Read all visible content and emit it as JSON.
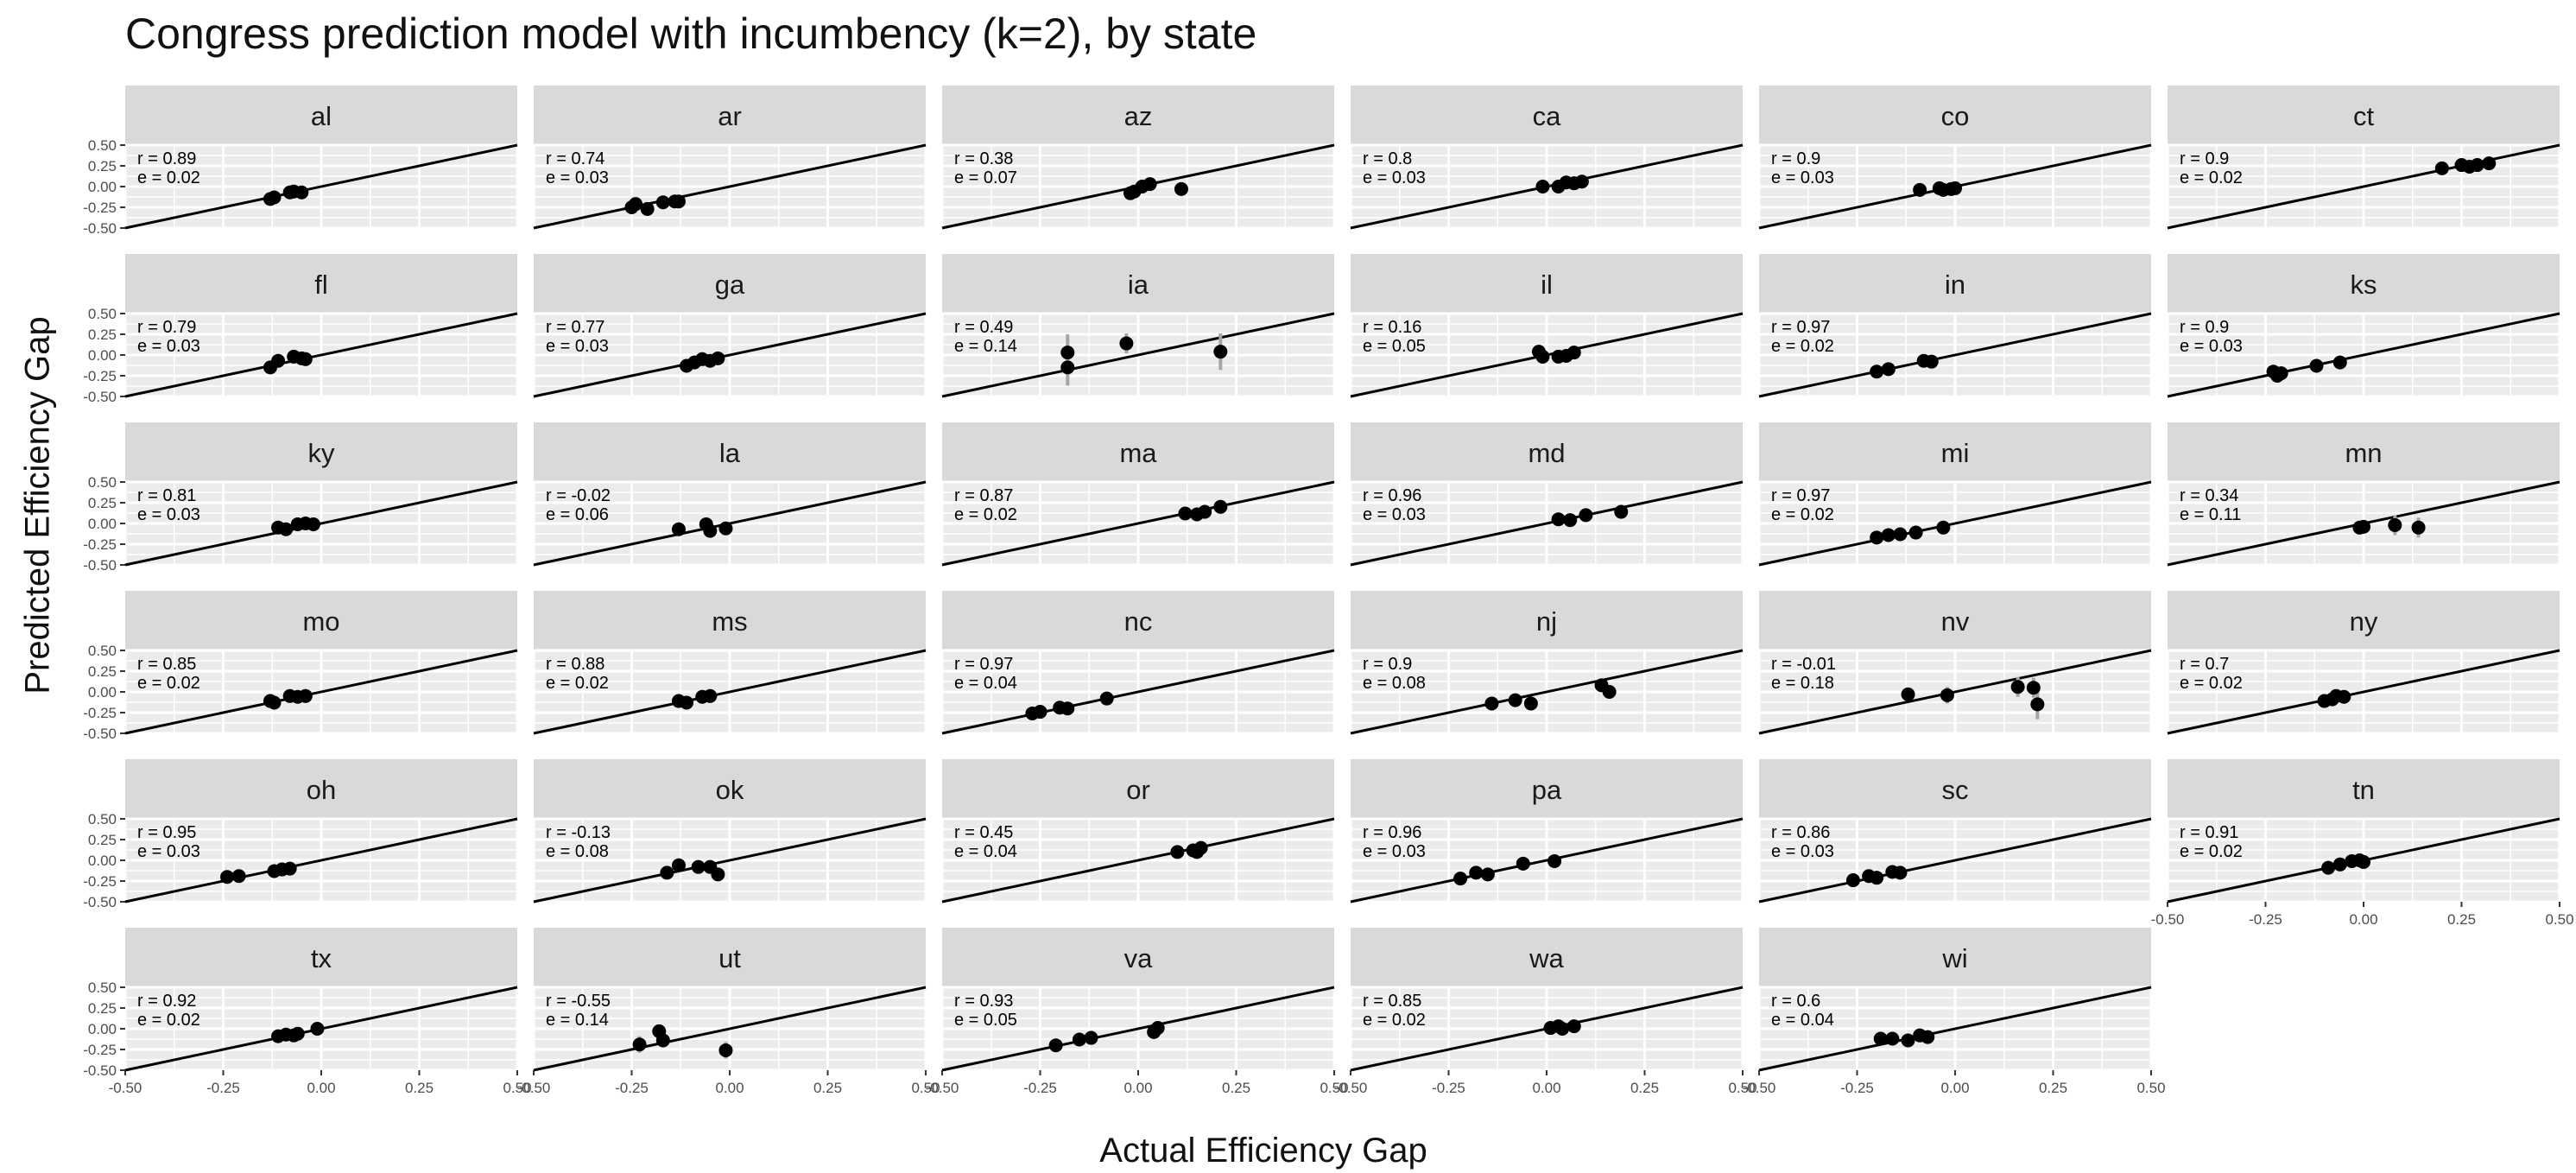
{
  "title": "Congress prediction model with incumbency (k=2), by state",
  "chart_data": {
    "type": "scatter",
    "title": "Congress prediction model with incumbency (k=2), by state",
    "xlabel": "Actual Efficiency Gap",
    "ylabel": "Predicted Efficiency Gap",
    "xlim": [
      -0.5,
      0.5
    ],
    "ylim": [
      -0.5,
      0.5
    ],
    "x_ticks": [
      "-0.50",
      "-0.25",
      "0.00",
      "0.25",
      "0.50"
    ],
    "y_ticks": [
      "0.50",
      "0.25",
      "0.00",
      "-0.25",
      "-0.50"
    ],
    "reference_line": "y = x",
    "grid": true,
    "panel_background": "#ebebeb",
    "strip_background": "#d9d9d9",
    "point_color": "#000000",
    "errorbar_color": "#a6a6a6",
    "line_color": "#000000",
    "facets": [
      {
        "state": "al",
        "r": "r = 0.89",
        "e": "e = 0.02",
        "points": [
          {
            "x": -0.13,
            "y": -0.15
          },
          {
            "x": -0.12,
            "y": -0.13
          },
          {
            "x": -0.08,
            "y": -0.07
          },
          {
            "x": -0.07,
            "y": -0.06
          },
          {
            "x": -0.05,
            "y": -0.07
          }
        ]
      },
      {
        "state": "ar",
        "r": "r = 0.74",
        "e": "e = 0.03",
        "points": [
          {
            "x": -0.25,
            "y": -0.25
          },
          {
            "x": -0.24,
            "y": -0.21
          },
          {
            "x": -0.21,
            "y": -0.27
          },
          {
            "x": -0.17,
            "y": -0.19
          },
          {
            "x": -0.14,
            "y": -0.18
          },
          {
            "x": -0.13,
            "y": -0.18
          }
        ]
      },
      {
        "state": "az",
        "r": "r = 0.38",
        "e": "e = 0.07",
        "points": [
          {
            "x": -0.02,
            "y": -0.08,
            "err": 0.03
          },
          {
            "x": -0.01,
            "y": -0.06,
            "err": 0.03
          },
          {
            "x": 0.01,
            "y": 0.0,
            "err": 0.03
          },
          {
            "x": 0.03,
            "y": 0.03
          },
          {
            "x": 0.11,
            "y": -0.03,
            "err": 0.03
          }
        ]
      },
      {
        "state": "ca",
        "r": "r = 0.8",
        "e": "e = 0.03",
        "points": [
          {
            "x": -0.01,
            "y": 0.0
          },
          {
            "x": 0.03,
            "y": 0.0
          },
          {
            "x": 0.05,
            "y": 0.05
          },
          {
            "x": 0.07,
            "y": 0.04
          },
          {
            "x": 0.09,
            "y": 0.06
          }
        ]
      },
      {
        "state": "co",
        "r": "r = 0.9",
        "e": "e = 0.03",
        "points": [
          {
            "x": -0.09,
            "y": -0.04
          },
          {
            "x": -0.04,
            "y": -0.02
          },
          {
            "x": -0.03,
            "y": -0.04
          },
          {
            "x": -0.01,
            "y": -0.03
          },
          {
            "x": 0.0,
            "y": -0.02
          }
        ]
      },
      {
        "state": "ct",
        "r": "r = 0.9",
        "e": "e = 0.02",
        "points": [
          {
            "x": 0.2,
            "y": 0.22
          },
          {
            "x": 0.25,
            "y": 0.26
          },
          {
            "x": 0.27,
            "y": 0.24
          },
          {
            "x": 0.29,
            "y": 0.26
          },
          {
            "x": 0.32,
            "y": 0.28
          }
        ]
      },
      {
        "state": "fl",
        "r": "r = 0.79",
        "e": "e = 0.03",
        "points": [
          {
            "x": -0.13,
            "y": -0.15
          },
          {
            "x": -0.11,
            "y": -0.07
          },
          {
            "x": -0.07,
            "y": -0.02
          },
          {
            "x": -0.05,
            "y": -0.04
          },
          {
            "x": -0.04,
            "y": -0.05
          }
        ]
      },
      {
        "state": "ga",
        "r": "r = 0.77",
        "e": "e = 0.03",
        "points": [
          {
            "x": -0.11,
            "y": -0.13
          },
          {
            "x": -0.09,
            "y": -0.09
          },
          {
            "x": -0.07,
            "y": -0.05
          },
          {
            "x": -0.05,
            "y": -0.07
          },
          {
            "x": -0.03,
            "y": -0.04
          }
        ]
      },
      {
        "state": "ia",
        "r": "r = 0.49",
        "e": "e = 0.14",
        "points": [
          {
            "x": -0.18,
            "y": 0.03,
            "err": 0.22
          },
          {
            "x": -0.18,
            "y": -0.15,
            "err": 0.22
          },
          {
            "x": -0.03,
            "y": 0.14,
            "err": 0.12
          },
          {
            "x": 0.21,
            "y": 0.04,
            "err": 0.22
          }
        ]
      },
      {
        "state": "il",
        "r": "r = 0.16",
        "e": "e = 0.05",
        "points": [
          {
            "x": -0.02,
            "y": 0.04
          },
          {
            "x": -0.01,
            "y": -0.02
          },
          {
            "x": 0.03,
            "y": -0.02
          },
          {
            "x": 0.05,
            "y": -0.01
          },
          {
            "x": 0.07,
            "y": 0.03
          }
        ]
      },
      {
        "state": "in",
        "r": "r = 0.97",
        "e": "e = 0.02",
        "points": [
          {
            "x": -0.2,
            "y": -0.2
          },
          {
            "x": -0.17,
            "y": -0.17
          },
          {
            "x": -0.08,
            "y": -0.07
          },
          {
            "x": -0.06,
            "y": -0.08
          }
        ]
      },
      {
        "state": "ks",
        "r": "r = 0.9",
        "e": "e = 0.03",
        "points": [
          {
            "x": -0.23,
            "y": -0.2
          },
          {
            "x": -0.22,
            "y": -0.25
          },
          {
            "x": -0.21,
            "y": -0.22
          },
          {
            "x": -0.12,
            "y": -0.13,
            "err": 0.08
          },
          {
            "x": -0.06,
            "y": -0.09
          }
        ]
      },
      {
        "state": "ky",
        "r": "r = 0.81",
        "e": "e = 0.03",
        "points": [
          {
            "x": -0.11,
            "y": -0.05
          },
          {
            "x": -0.09,
            "y": -0.07
          },
          {
            "x": -0.06,
            "y": -0.01
          },
          {
            "x": -0.04,
            "y": 0.0
          },
          {
            "x": -0.02,
            "y": -0.01
          }
        ]
      },
      {
        "state": "la",
        "r": "r = -0.02",
        "e": "e = 0.06",
        "points": [
          {
            "x": -0.13,
            "y": -0.07
          },
          {
            "x": -0.06,
            "y": -0.01
          },
          {
            "x": -0.05,
            "y": -0.09,
            "err": 0.04
          },
          {
            "x": -0.01,
            "y": -0.06
          }
        ]
      },
      {
        "state": "ma",
        "r": "r = 0.87",
        "e": "e = 0.02",
        "points": [
          {
            "x": 0.12,
            "y": 0.12
          },
          {
            "x": 0.15,
            "y": 0.11
          },
          {
            "x": 0.17,
            "y": 0.14
          },
          {
            "x": 0.21,
            "y": 0.2
          }
        ]
      },
      {
        "state": "md",
        "r": "r = 0.96",
        "e": "e = 0.03",
        "points": [
          {
            "x": 0.03,
            "y": 0.05
          },
          {
            "x": 0.06,
            "y": 0.04
          },
          {
            "x": 0.1,
            "y": 0.1
          },
          {
            "x": 0.19,
            "y": 0.14
          }
        ]
      },
      {
        "state": "mi",
        "r": "r = 0.97",
        "e": "e = 0.02",
        "points": [
          {
            "x": -0.2,
            "y": -0.17
          },
          {
            "x": -0.17,
            "y": -0.14
          },
          {
            "x": -0.14,
            "y": -0.13
          },
          {
            "x": -0.1,
            "y": -0.11
          },
          {
            "x": -0.03,
            "y": -0.05
          }
        ]
      },
      {
        "state": "mn",
        "r": "r = 0.34",
        "e": "e = 0.11",
        "points": [
          {
            "x": -0.01,
            "y": -0.05
          },
          {
            "x": 0.0,
            "y": -0.04,
            "err": 0.06
          },
          {
            "x": 0.08,
            "y": -0.02,
            "err": 0.12
          },
          {
            "x": 0.14,
            "y": -0.05,
            "err": 0.12
          }
        ]
      },
      {
        "state": "mo",
        "r": "r = 0.85",
        "e": "e = 0.02",
        "points": [
          {
            "x": -0.13,
            "y": -0.11
          },
          {
            "x": -0.12,
            "y": -0.13
          },
          {
            "x": -0.08,
            "y": -0.05
          },
          {
            "x": -0.06,
            "y": -0.06
          },
          {
            "x": -0.04,
            "y": -0.05
          }
        ]
      },
      {
        "state": "ms",
        "r": "r = 0.88",
        "e": "e = 0.02",
        "points": [
          {
            "x": -0.13,
            "y": -0.11
          },
          {
            "x": -0.11,
            "y": -0.13
          },
          {
            "x": -0.07,
            "y": -0.06
          },
          {
            "x": -0.05,
            "y": -0.05
          }
        ]
      },
      {
        "state": "nc",
        "r": "r = 0.97",
        "e": "e = 0.04",
        "points": [
          {
            "x": -0.27,
            "y": -0.26
          },
          {
            "x": -0.25,
            "y": -0.24
          },
          {
            "x": -0.2,
            "y": -0.19
          },
          {
            "x": -0.18,
            "y": -0.2
          },
          {
            "x": -0.08,
            "y": -0.08
          }
        ]
      },
      {
        "state": "nj",
        "r": "r = 0.9",
        "e": "e = 0.08",
        "points": [
          {
            "x": -0.14,
            "y": -0.14
          },
          {
            "x": -0.08,
            "y": -0.1
          },
          {
            "x": -0.04,
            "y": -0.14
          },
          {
            "x": 0.14,
            "y": 0.08
          },
          {
            "x": 0.16,
            "y": 0.0
          }
        ]
      },
      {
        "state": "nv",
        "r": "r = -0.01",
        "e": "e = 0.18",
        "points": [
          {
            "x": -0.12,
            "y": -0.03
          },
          {
            "x": -0.02,
            "y": -0.04,
            "err": 0.1
          },
          {
            "x": 0.16,
            "y": 0.06,
            "err": 0.12
          },
          {
            "x": 0.2,
            "y": 0.05,
            "err": 0.12
          },
          {
            "x": 0.21,
            "y": -0.15,
            "err": 0.18
          }
        ]
      },
      {
        "state": "ny",
        "r": "r = 0.7",
        "e": "e = 0.02",
        "points": [
          {
            "x": -0.1,
            "y": -0.11
          },
          {
            "x": -0.08,
            "y": -0.09
          },
          {
            "x": -0.07,
            "y": -0.05
          },
          {
            "x": -0.05,
            "y": -0.06
          }
        ]
      },
      {
        "state": "oh",
        "r": "r = 0.95",
        "e": "e = 0.03",
        "points": [
          {
            "x": -0.24,
            "y": -0.2
          },
          {
            "x": -0.21,
            "y": -0.19
          },
          {
            "x": -0.12,
            "y": -0.13
          },
          {
            "x": -0.1,
            "y": -0.11
          },
          {
            "x": -0.08,
            "y": -0.1
          }
        ]
      },
      {
        "state": "ok",
        "r": "r = -0.13",
        "e": "e = 0.08",
        "points": [
          {
            "x": -0.16,
            "y": -0.15
          },
          {
            "x": -0.13,
            "y": -0.06,
            "err": 0.08
          },
          {
            "x": -0.08,
            "y": -0.08
          },
          {
            "x": -0.05,
            "y": -0.08
          },
          {
            "x": -0.03,
            "y": -0.17
          }
        ]
      },
      {
        "state": "or",
        "r": "r = 0.45",
        "e": "e = 0.04",
        "points": [
          {
            "x": 0.1,
            "y": 0.1
          },
          {
            "x": 0.14,
            "y": 0.12
          },
          {
            "x": 0.15,
            "y": 0.1
          },
          {
            "x": 0.16,
            "y": 0.15
          }
        ]
      },
      {
        "state": "pa",
        "r": "r = 0.96",
        "e": "e = 0.03",
        "points": [
          {
            "x": -0.22,
            "y": -0.22
          },
          {
            "x": -0.18,
            "y": -0.15
          },
          {
            "x": -0.15,
            "y": -0.17
          },
          {
            "x": -0.06,
            "y": -0.04
          },
          {
            "x": 0.02,
            "y": -0.01
          }
        ]
      },
      {
        "state": "sc",
        "r": "r = 0.86",
        "e": "e = 0.03",
        "points": [
          {
            "x": -0.26,
            "y": -0.24
          },
          {
            "x": -0.22,
            "y": -0.19
          },
          {
            "x": -0.2,
            "y": -0.21
          },
          {
            "x": -0.16,
            "y": -0.14
          },
          {
            "x": -0.14,
            "y": -0.15
          }
        ]
      },
      {
        "state": "tn",
        "r": "r = 0.91",
        "e": "e = 0.02",
        "points": [
          {
            "x": -0.09,
            "y": -0.09
          },
          {
            "x": -0.06,
            "y": -0.05
          },
          {
            "x": -0.03,
            "y": -0.01
          },
          {
            "x": -0.01,
            "y": 0.0
          },
          {
            "x": 0.0,
            "y": -0.02
          }
        ]
      },
      {
        "state": "tx",
        "r": "r = 0.92",
        "e": "e = 0.02",
        "points": [
          {
            "x": -0.11,
            "y": -0.09
          },
          {
            "x": -0.09,
            "y": -0.07
          },
          {
            "x": -0.07,
            "y": -0.08
          },
          {
            "x": -0.06,
            "y": -0.06
          },
          {
            "x": -0.01,
            "y": 0.0
          }
        ]
      },
      {
        "state": "ut",
        "r": "r = -0.55",
        "e": "e = 0.14",
        "points": [
          {
            "x": -0.23,
            "y": -0.19,
            "err": 0.1
          },
          {
            "x": -0.18,
            "y": -0.03,
            "err": 0.05
          },
          {
            "x": -0.17,
            "y": -0.14,
            "err": 0.05
          },
          {
            "x": -0.01,
            "y": -0.26,
            "err": 0.1
          }
        ]
      },
      {
        "state": "va",
        "r": "r = 0.93",
        "e": "e = 0.05",
        "points": [
          {
            "x": -0.21,
            "y": -0.2
          },
          {
            "x": -0.15,
            "y": -0.13
          },
          {
            "x": -0.12,
            "y": -0.11
          },
          {
            "x": 0.04,
            "y": -0.04
          },
          {
            "x": 0.05,
            "y": 0.01
          }
        ]
      },
      {
        "state": "wa",
        "r": "r = 0.85",
        "e": "e = 0.02",
        "points": [
          {
            "x": 0.01,
            "y": 0.01
          },
          {
            "x": 0.03,
            "y": 0.03
          },
          {
            "x": 0.04,
            "y": 0.0
          },
          {
            "x": 0.07,
            "y": 0.03
          }
        ]
      },
      {
        "state": "wi",
        "r": "r = 0.6",
        "e": "e = 0.04",
        "points": [
          {
            "x": -0.19,
            "y": -0.12
          },
          {
            "x": -0.16,
            "y": -0.12
          },
          {
            "x": -0.12,
            "y": -0.14
          },
          {
            "x": -0.09,
            "y": -0.08
          },
          {
            "x": -0.07,
            "y": -0.1
          }
        ]
      }
    ]
  }
}
